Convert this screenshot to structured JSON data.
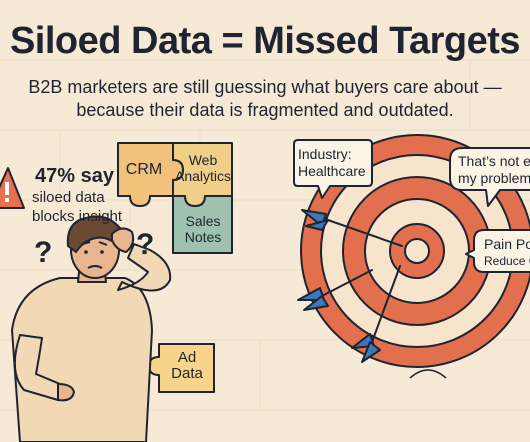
{
  "title": "Siloed Data = Missed Targets",
  "subtitle_line1": "B2B marketers are still guessing what buyers care about —",
  "subtitle_line2": "because their data is fragmented and outdated.",
  "stat": {
    "number": "47% say",
    "line1": "siloed data",
    "line2": "blocks insight"
  },
  "puzzle": {
    "crm": "CRM",
    "web_line1": "Web",
    "web_line2": "Analytics",
    "sales_line1": "Sales",
    "sales_line2": "Notes",
    "ad_line1": "Ad",
    "ad_line2": "Data"
  },
  "question_mark": "?",
  "bubbles": {
    "industry_line1": "Industry:",
    "industry_line2": "Healthcare",
    "problem_line1": "That’s not ev",
    "problem_line2": "my problem",
    "pain_line1": "Pain Po",
    "pain_line2": "Reduce C"
  },
  "colors": {
    "background": "#f6ead6",
    "crm": "#f2c27a",
    "web": "#f0cf88",
    "sales": "#9fc2b0",
    "ad": "#f6d48a",
    "target_red": "#e26f4e",
    "target_cream": "#f7e4cc",
    "dart_blue": "#3b78b8"
  }
}
